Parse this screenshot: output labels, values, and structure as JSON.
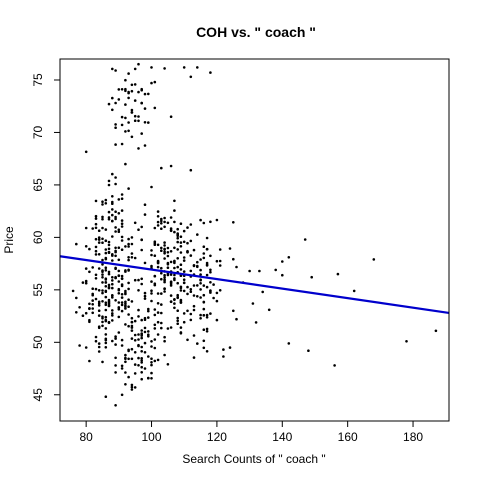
{
  "chart_data": {
    "type": "scatter",
    "title": "COH vs. \" coach \"",
    "xlabel": "Search Counts of \" coach \"",
    "ylabel": "Price",
    "xlim": [
      72,
      191
    ],
    "ylim": [
      42.5,
      77
    ],
    "xticks": [
      80,
      100,
      120,
      140,
      160,
      180
    ],
    "yticks": [
      45,
      50,
      55,
      60,
      65,
      70,
      75
    ],
    "grid": false,
    "legend": "none",
    "point_color": "#000000",
    "regression_line": {
      "color": "#0000cc",
      "x": [
        72,
        191
      ],
      "y": [
        58.2,
        52.8
      ]
    },
    "clusters": [
      {
        "xc": 87,
        "yc": 55,
        "sx": 4.5,
        "sy": 3.6,
        "n": 220
      },
      {
        "xc": 97,
        "yc": 50,
        "sx": 3,
        "sy": 2.6,
        "n": 90
      },
      {
        "xc": 93,
        "yc": 72.5,
        "sx": 3.2,
        "sy": 2.2,
        "n": 55
      },
      {
        "xc": 87,
        "yc": 62,
        "sx": 3.5,
        "sy": 2.5,
        "n": 40
      },
      {
        "xc": 106,
        "yc": 57,
        "sx": 3.5,
        "sy": 2.6,
        "n": 120
      },
      {
        "xc": 114,
        "yc": 54.5,
        "sx": 4.5,
        "sy": 2.8,
        "n": 90
      },
      {
        "xc": 119,
        "yc": 58,
        "sx": 5,
        "sy": 2.2,
        "n": 30
      },
      {
        "xc": 100,
        "yc": 60,
        "sx": 5,
        "sy": 2.5,
        "n": 40
      }
    ],
    "points": [
      {
        "x": 96,
        "y": 76.5
      },
      {
        "x": 104,
        "y": 76.1
      },
      {
        "x": 110,
        "y": 76.2
      },
      {
        "x": 114,
        "y": 76.2
      },
      {
        "x": 118,
        "y": 75.7
      },
      {
        "x": 100,
        "y": 76.2
      },
      {
        "x": 89,
        "y": 75.9
      },
      {
        "x": 112,
        "y": 75.3
      },
      {
        "x": 100,
        "y": 74.7
      },
      {
        "x": 101,
        "y": 74.8
      },
      {
        "x": 106,
        "y": 71.5
      },
      {
        "x": 112,
        "y": 66.4
      },
      {
        "x": 103,
        "y": 66.6
      },
      {
        "x": 106,
        "y": 66.8
      },
      {
        "x": 92,
        "y": 46
      },
      {
        "x": 91,
        "y": 45
      },
      {
        "x": 89,
        "y": 44
      },
      {
        "x": 95,
        "y": 45.7
      },
      {
        "x": 78,
        "y": 49.7
      },
      {
        "x": 122,
        "y": 49.3
      },
      {
        "x": 124,
        "y": 49.5
      },
      {
        "x": 126,
        "y": 52.2
      },
      {
        "x": 131,
        "y": 53.7
      },
      {
        "x": 128,
        "y": 55.7
      },
      {
        "x": 130,
        "y": 56.8
      },
      {
        "x": 133,
        "y": 56.8
      },
      {
        "x": 138,
        "y": 56.9
      },
      {
        "x": 140,
        "y": 57.7
      },
      {
        "x": 142,
        "y": 58.1
      },
      {
        "x": 147,
        "y": 59.8
      },
      {
        "x": 134,
        "y": 54.8
      },
      {
        "x": 136,
        "y": 53.1
      },
      {
        "x": 140,
        "y": 56.4
      },
      {
        "x": 149,
        "y": 56.2
      },
      {
        "x": 132,
        "y": 51.9
      },
      {
        "x": 148,
        "y": 49.2
      },
      {
        "x": 156,
        "y": 47.8
      },
      {
        "x": 142,
        "y": 49.9
      },
      {
        "x": 157,
        "y": 56.5
      },
      {
        "x": 168,
        "y": 57.9
      },
      {
        "x": 178,
        "y": 50.1
      },
      {
        "x": 187,
        "y": 51.1
      },
      {
        "x": 162,
        "y": 54.9
      }
    ]
  }
}
